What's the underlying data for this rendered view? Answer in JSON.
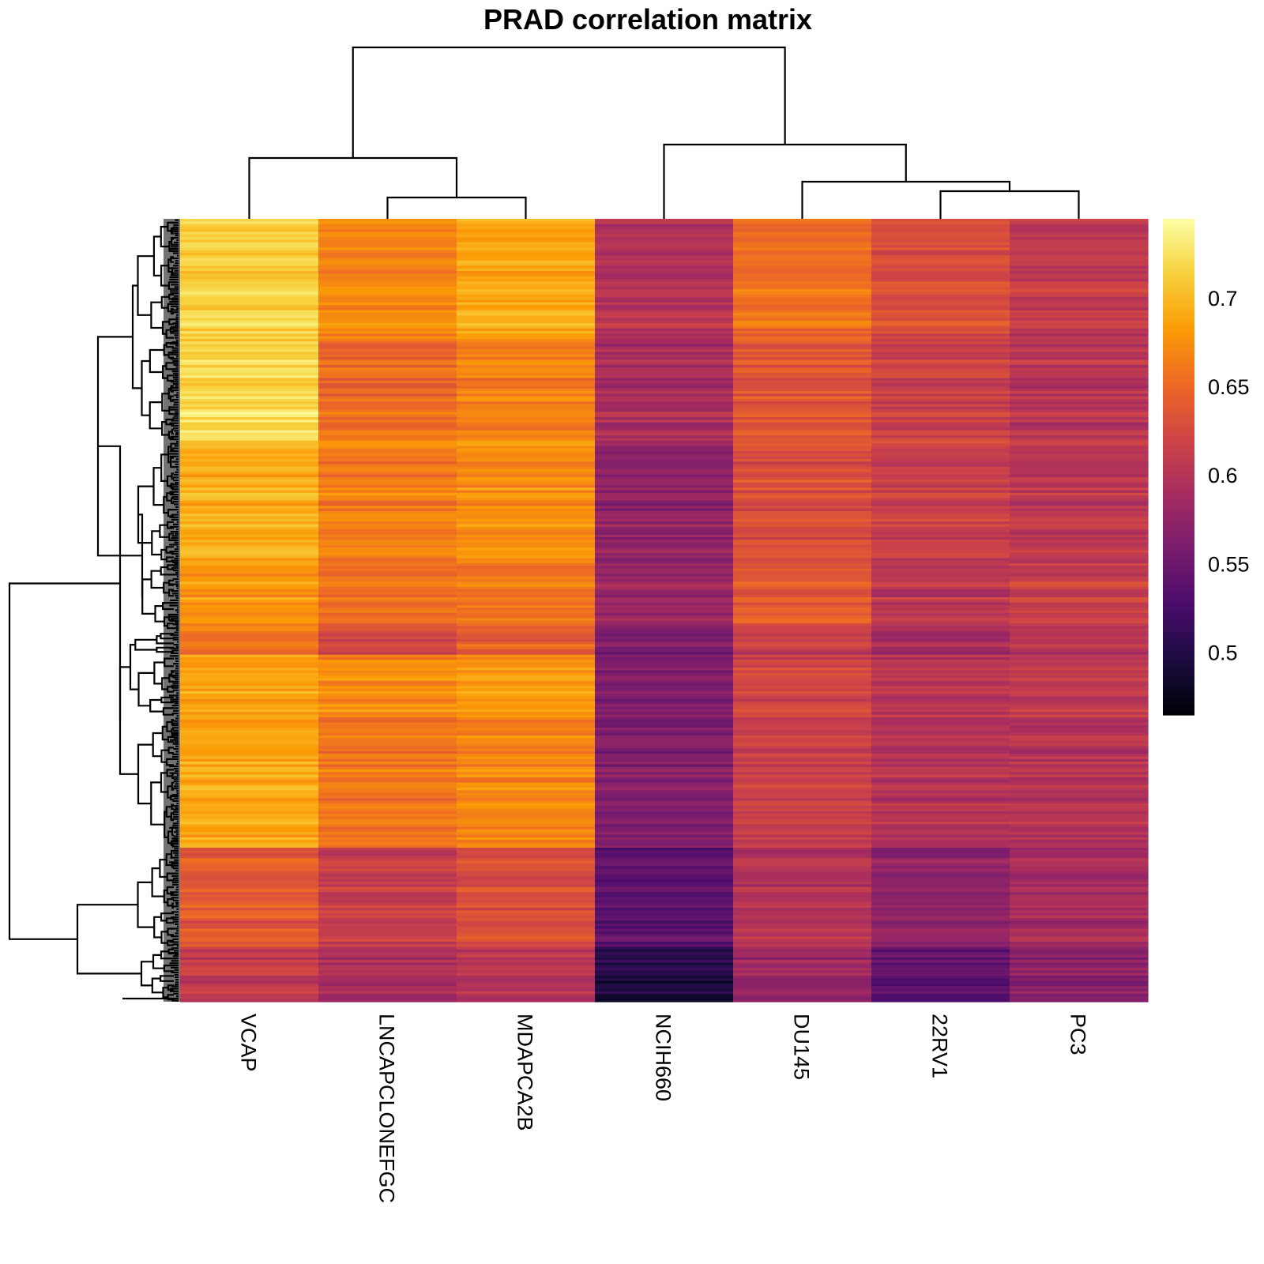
{
  "chart_data": {
    "type": "heatmap",
    "title": "PRAD correlation matrix",
    "columns": [
      "VCAP",
      "LNCAPCLONEFGC",
      "MDAPCA2B",
      "NCIH660",
      "DU145",
      "22RV1",
      "PC3"
    ],
    "row_labels_shown": false,
    "colorscale": {
      "name": "inferno",
      "range": [
        0.465,
        0.745
      ],
      "ticks": [
        0.5,
        0.55,
        0.6,
        0.65,
        0.7
      ],
      "tick_labels": [
        "0.5",
        "0.55",
        "0.6",
        "0.65",
        "0.7"
      ],
      "stops": [
        "#000004",
        "#1b0c41",
        "#4a0c6b",
        "#781c6d",
        "#a52c60",
        "#cf4446",
        "#ed6925",
        "#fb9b06",
        "#f7d13d",
        "#fcffa4"
      ]
    },
    "row_blocks": [
      {
        "fraction": 0.155,
        "values": [
          0.715,
          0.67,
          0.69,
          0.6,
          0.655,
          0.63,
          0.61
        ]
      },
      {
        "fraction": 0.125,
        "values": [
          0.72,
          0.65,
          0.665,
          0.59,
          0.635,
          0.615,
          0.6
        ]
      },
      {
        "fraction": 0.155,
        "values": [
          0.695,
          0.665,
          0.675,
          0.575,
          0.63,
          0.615,
          0.605
        ]
      },
      {
        "fraction": 0.085,
        "values": [
          0.68,
          0.655,
          0.66,
          0.58,
          0.64,
          0.605,
          0.615
        ]
      },
      {
        "fraction": 0.03,
        "values": [
          0.655,
          0.62,
          0.64,
          0.555,
          0.61,
          0.585,
          0.6
        ]
      },
      {
        "fraction": 0.08,
        "values": [
          0.685,
          0.67,
          0.68,
          0.56,
          0.62,
          0.6,
          0.605
        ]
      },
      {
        "fraction": 0.165,
        "values": [
          0.69,
          0.66,
          0.67,
          0.565,
          0.615,
          0.6,
          0.6
        ]
      },
      {
        "fraction": 0.125,
        "values": [
          0.64,
          0.615,
          0.63,
          0.54,
          0.6,
          0.575,
          0.59
        ]
      },
      {
        "fraction": 0.015,
        "values": [
          0.61,
          0.59,
          0.6,
          0.5,
          0.58,
          0.54,
          0.57
        ]
      }
    ],
    "column_dendrogram": "((VCAP,(LNCAPCLONEFGC,MDAPCA2B)),(NCIH660,(DU145,(22RV1,PC3))))",
    "row_dendrogram": "hierarchical clustering of rows (labels not shown)",
    "legend": "right",
    "grid": false
  }
}
